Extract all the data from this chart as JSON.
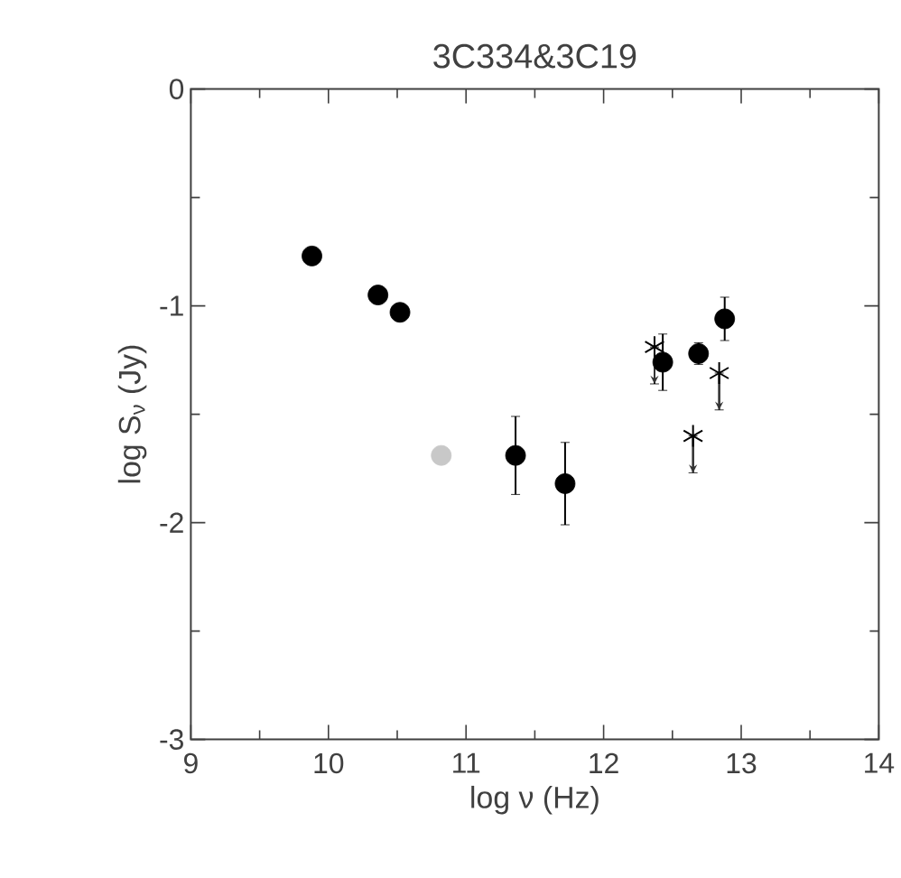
{
  "chart_data": {
    "type": "scatter",
    "title": "3C334&3C19",
    "xlabel": "log ν (Hz)",
    "ylabel": "log S$_{ν}$ (Jy)",
    "xlim": [
      9,
      14
    ],
    "ylim": [
      -3,
      0
    ],
    "xticks": [
      9,
      10,
      11,
      12,
      13,
      14
    ],
    "yticks": [
      -3,
      -2,
      -1,
      0
    ],
    "grid": false,
    "series": [
      {
        "color": "#000000",
        "marker": "circle",
        "x": [
          9.88,
          10.36,
          10.52,
          11.36,
          11.72,
          12.43,
          12.69,
          12.88
        ],
        "values": [
          -0.77,
          -0.95,
          -1.03,
          -1.69,
          -1.82,
          -1.26,
          -1.22,
          -1.06
        ],
        "errors": [
          null,
          null,
          null,
          0.18,
          0.19,
          0.13,
          0.05,
          0.1
        ]
      },
      {
        "color": "#c8c8c8",
        "marker": "circle",
        "x": [
          10.82
        ],
        "values": [
          -1.69
        ]
      },
      {
        "color": "#000000",
        "marker": "cross",
        "x": [
          12.37,
          12.65,
          12.84
        ],
        "values": [
          -1.19,
          -1.6,
          -1.31
        ],
        "errors": [
          [
            -1.36,
            -1.19
          ],
          [
            -1.77,
            -1.6
          ],
          [
            -1.48,
            -1.31
          ]
        ]
      }
    ]
  }
}
